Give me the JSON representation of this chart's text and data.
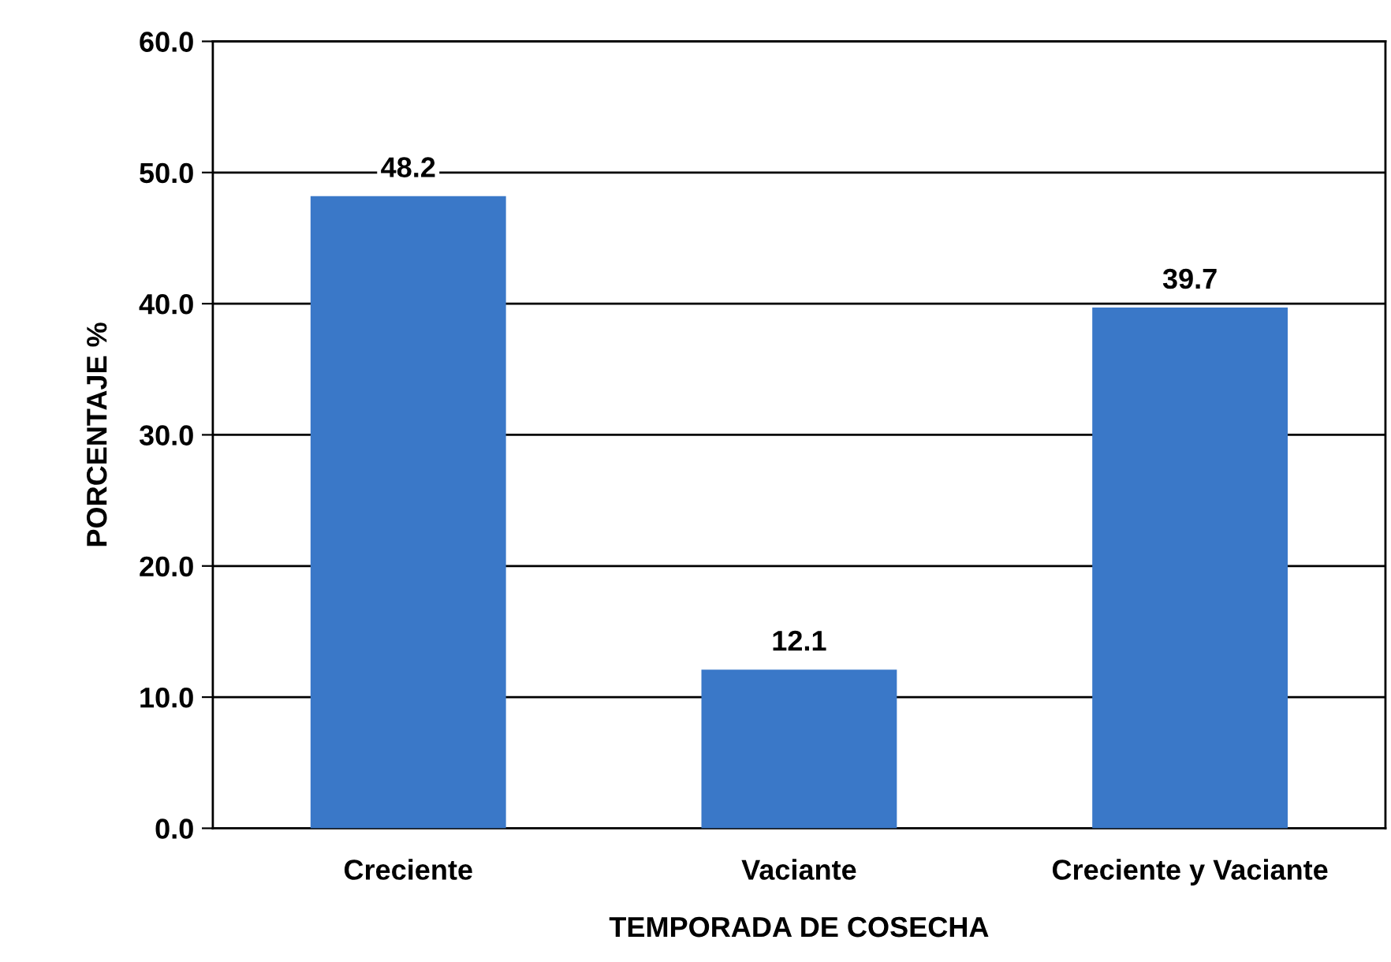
{
  "chart_data": {
    "type": "bar",
    "xlabel": "TEMPORADA DE COSECHA",
    "ylabel": "PORCENTAJE %",
    "categories": [
      "Creciente",
      "Vaciante",
      "Creciente y Vaciante"
    ],
    "values": [
      48.2,
      12.1,
      39.7
    ],
    "color": "#3a78c8",
    "ylim": [
      0,
      60
    ],
    "yticks": [
      {
        "value": 0,
        "label": "0.0"
      },
      {
        "value": 10,
        "label": "10.0"
      },
      {
        "value": 20,
        "label": "20.0"
      },
      {
        "value": 30,
        "label": "30.0"
      },
      {
        "value": 40,
        "label": "40.0"
      },
      {
        "value": 50,
        "label": "50.0"
      },
      {
        "value": 60,
        "label": "60.0"
      }
    ],
    "grid": "y",
    "data_labels": true
  }
}
